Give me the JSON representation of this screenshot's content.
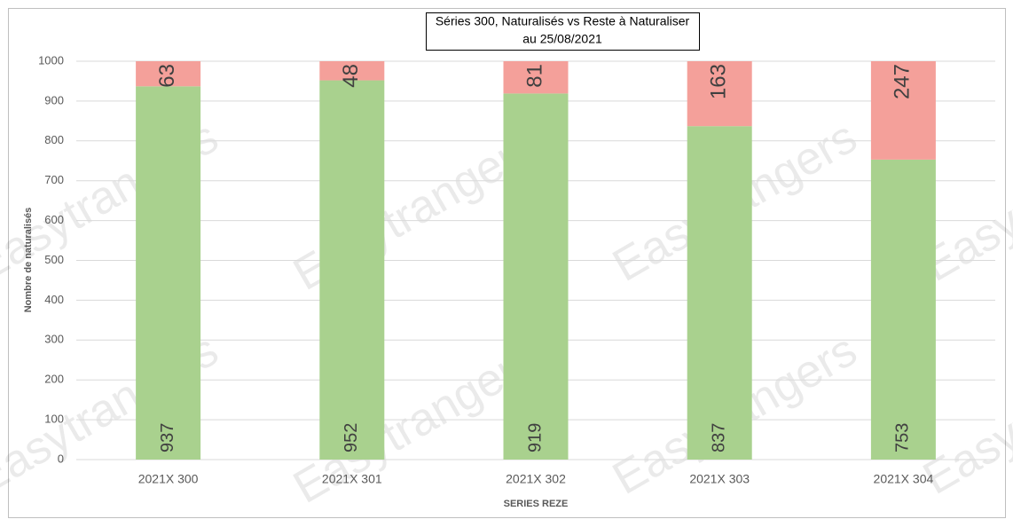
{
  "chart_data": {
    "type": "stacked-bar",
    "title": "Séries 300, Naturalisés vs Reste à Naturaliser",
    "subtitle": "au 25/08/2021",
    "x_label": "SERIES REZE",
    "y_label": "Nombre de naturalisés",
    "watermark": "Easytrangers",
    "categories": [
      "2021X 300",
      "2021X 301",
      "2021X 302",
      "2021X 303",
      "2021X 304"
    ],
    "series": [
      {
        "color": "#a9d18e",
        "values": [
          937,
          952,
          919,
          837,
          753
        ]
      },
      {
        "color": "#f4a09a",
        "values": [
          63,
          48,
          81,
          163,
          247
        ]
      }
    ],
    "ylim": [
      0,
      1000
    ],
    "yticks": [
      0,
      100,
      200,
      300,
      400,
      500,
      600,
      700,
      800,
      900,
      1000
    ],
    "grid": true
  }
}
